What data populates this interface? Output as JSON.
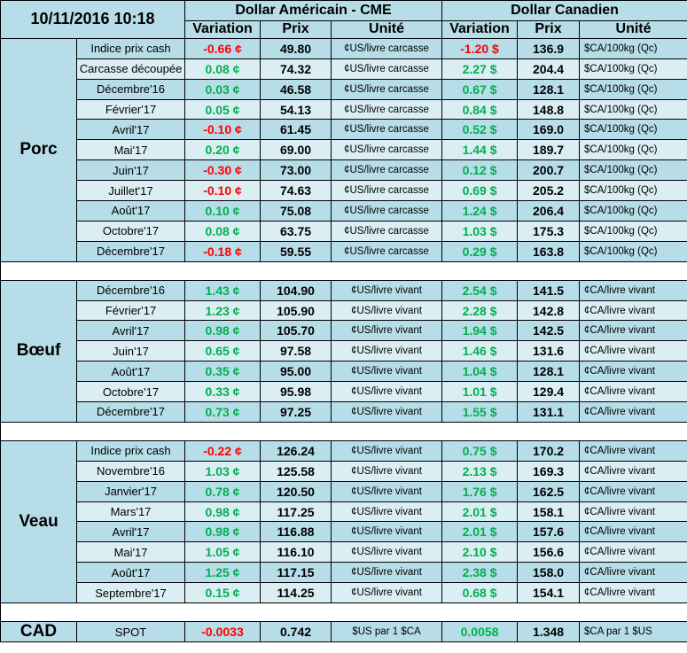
{
  "header": {
    "datetime": "10/11/2016 10:18",
    "usd_title": "Dollar Américain - CME",
    "cad_title": "Dollar Canadien",
    "col_variation": "Variation",
    "col_prix": "Prix",
    "col_unite": "Unité"
  },
  "groups": [
    {
      "name": "Porc",
      "rows": [
        {
          "label": "Indice prix cash",
          "usd_var": "-0.66 ¢",
          "usd_sign": "neg",
          "usd_prix": "49.80",
          "usd_unit": "¢US/livre carcasse",
          "cad_var": "-1.20 $",
          "cad_sign": "neg",
          "cad_prix": "136.9",
          "cad_unit": "$CA/100kg (Qc)"
        },
        {
          "label": "Carcasse découpée",
          "usd_var": "0.08 ¢",
          "usd_sign": "pos",
          "usd_prix": "74.32",
          "usd_unit": "¢US/livre carcasse",
          "cad_var": "2.27 $",
          "cad_sign": "pos",
          "cad_prix": "204.4",
          "cad_unit": "$CA/100kg (Qc)"
        },
        {
          "label": "Décembre'16",
          "usd_var": "0.03 ¢",
          "usd_sign": "pos",
          "usd_prix": "46.58",
          "usd_unit": "¢US/livre carcasse",
          "cad_var": "0.67 $",
          "cad_sign": "pos",
          "cad_prix": "128.1",
          "cad_unit": "$CA/100kg (Qc)"
        },
        {
          "label": "Février'17",
          "usd_var": "0.05 ¢",
          "usd_sign": "pos",
          "usd_prix": "54.13",
          "usd_unit": "¢US/livre carcasse",
          "cad_var": "0.84 $",
          "cad_sign": "pos",
          "cad_prix": "148.8",
          "cad_unit": "$CA/100kg (Qc)"
        },
        {
          "label": "Avril'17",
          "usd_var": "-0.10 ¢",
          "usd_sign": "neg",
          "usd_prix": "61.45",
          "usd_unit": "¢US/livre carcasse",
          "cad_var": "0.52 $",
          "cad_sign": "pos",
          "cad_prix": "169.0",
          "cad_unit": "$CA/100kg (Qc)"
        },
        {
          "label": "Mai'17",
          "usd_var": "0.20 ¢",
          "usd_sign": "pos",
          "usd_prix": "69.00",
          "usd_unit": "¢US/livre carcasse",
          "cad_var": "1.44 $",
          "cad_sign": "pos",
          "cad_prix": "189.7",
          "cad_unit": "$CA/100kg (Qc)"
        },
        {
          "label": "Juin'17",
          "usd_var": "-0.30 ¢",
          "usd_sign": "neg",
          "usd_prix": "73.00",
          "usd_unit": "¢US/livre carcasse",
          "cad_var": "0.12 $",
          "cad_sign": "pos",
          "cad_prix": "200.7",
          "cad_unit": "$CA/100kg (Qc)"
        },
        {
          "label": "Juillet'17",
          "usd_var": "-0.10 ¢",
          "usd_sign": "neg",
          "usd_prix": "74.63",
          "usd_unit": "¢US/livre carcasse",
          "cad_var": "0.69 $",
          "cad_sign": "pos",
          "cad_prix": "205.2",
          "cad_unit": "$CA/100kg (Qc)"
        },
        {
          "label": "Août'17",
          "usd_var": "0.10 ¢",
          "usd_sign": "pos",
          "usd_prix": "75.08",
          "usd_unit": "¢US/livre carcasse",
          "cad_var": "1.24 $",
          "cad_sign": "pos",
          "cad_prix": "206.4",
          "cad_unit": "$CA/100kg (Qc)"
        },
        {
          "label": "Octobre'17",
          "usd_var": "0.08 ¢",
          "usd_sign": "pos",
          "usd_prix": "63.75",
          "usd_unit": "¢US/livre carcasse",
          "cad_var": "1.03 $",
          "cad_sign": "pos",
          "cad_prix": "175.3",
          "cad_unit": "$CA/100kg (Qc)"
        },
        {
          "label": "Décembre'17",
          "usd_var": "-0.18 ¢",
          "usd_sign": "neg",
          "usd_prix": "59.55",
          "usd_unit": "¢US/livre carcasse",
          "cad_var": "0.29 $",
          "cad_sign": "pos",
          "cad_prix": "163.8",
          "cad_unit": "$CA/100kg (Qc)"
        }
      ]
    },
    {
      "name": "Bœuf",
      "rows": [
        {
          "label": "Décembre'16",
          "usd_var": "1.43 ¢",
          "usd_sign": "pos",
          "usd_prix": "104.90",
          "usd_unit": "¢US/livre vivant",
          "cad_var": "2.54 $",
          "cad_sign": "pos",
          "cad_prix": "141.5",
          "cad_unit": "¢CA/livre vivant"
        },
        {
          "label": "Février'17",
          "usd_var": "1.23 ¢",
          "usd_sign": "pos",
          "usd_prix": "105.90",
          "usd_unit": "¢US/livre vivant",
          "cad_var": "2.28 $",
          "cad_sign": "pos",
          "cad_prix": "142.8",
          "cad_unit": "¢CA/livre vivant"
        },
        {
          "label": "Avril'17",
          "usd_var": "0.98 ¢",
          "usd_sign": "pos",
          "usd_prix": "105.70",
          "usd_unit": "¢US/livre vivant",
          "cad_var": "1.94 $",
          "cad_sign": "pos",
          "cad_prix": "142.5",
          "cad_unit": "¢CA/livre vivant"
        },
        {
          "label": "Juin'17",
          "usd_var": "0.65 ¢",
          "usd_sign": "pos",
          "usd_prix": "97.58",
          "usd_unit": "¢US/livre vivant",
          "cad_var": "1.46 $",
          "cad_sign": "pos",
          "cad_prix": "131.6",
          "cad_unit": "¢CA/livre vivant"
        },
        {
          "label": "Août'17",
          "usd_var": "0.35 ¢",
          "usd_sign": "pos",
          "usd_prix": "95.00",
          "usd_unit": "¢US/livre vivant",
          "cad_var": "1.04 $",
          "cad_sign": "pos",
          "cad_prix": "128.1",
          "cad_unit": "¢CA/livre vivant"
        },
        {
          "label": "Octobre'17",
          "usd_var": "0.33 ¢",
          "usd_sign": "pos",
          "usd_prix": "95.98",
          "usd_unit": "¢US/livre vivant",
          "cad_var": "1.01 $",
          "cad_sign": "pos",
          "cad_prix": "129.4",
          "cad_unit": "¢CA/livre vivant"
        },
        {
          "label": "Décembre'17",
          "usd_var": "0.73 ¢",
          "usd_sign": "pos",
          "usd_prix": "97.25",
          "usd_unit": "¢US/livre vivant",
          "cad_var": "1.55 $",
          "cad_sign": "pos",
          "cad_prix": "131.1",
          "cad_unit": "¢CA/livre vivant"
        }
      ]
    },
    {
      "name": "Veau",
      "rows": [
        {
          "label": "Indice prix cash",
          "usd_var": "-0.22 ¢",
          "usd_sign": "neg",
          "usd_prix": "126.24",
          "usd_unit": "¢US/livre vivant",
          "cad_var": "0.75 $",
          "cad_sign": "pos",
          "cad_prix": "170.2",
          "cad_unit": "¢CA/livre vivant"
        },
        {
          "label": "Novembre'16",
          "usd_var": "1.03 ¢",
          "usd_sign": "pos",
          "usd_prix": "125.58",
          "usd_unit": "¢US/livre vivant",
          "cad_var": "2.13 $",
          "cad_sign": "pos",
          "cad_prix": "169.3",
          "cad_unit": "¢CA/livre vivant"
        },
        {
          "label": "Janvier'17",
          "usd_var": "0.78 ¢",
          "usd_sign": "pos",
          "usd_prix": "120.50",
          "usd_unit": "¢US/livre vivant",
          "cad_var": "1.76 $",
          "cad_sign": "pos",
          "cad_prix": "162.5",
          "cad_unit": "¢CA/livre vivant"
        },
        {
          "label": "Mars'17",
          "usd_var": "0.98 ¢",
          "usd_sign": "pos",
          "usd_prix": "117.25",
          "usd_unit": "¢US/livre vivant",
          "cad_var": "2.01 $",
          "cad_sign": "pos",
          "cad_prix": "158.1",
          "cad_unit": "¢CA/livre vivant"
        },
        {
          "label": "Avril'17",
          "usd_var": "0.98 ¢",
          "usd_sign": "pos",
          "usd_prix": "116.88",
          "usd_unit": "¢US/livre vivant",
          "cad_var": "2.01 $",
          "cad_sign": "pos",
          "cad_prix": "157.6",
          "cad_unit": "¢CA/livre vivant"
        },
        {
          "label": "Mai'17",
          "usd_var": "1.05 ¢",
          "usd_sign": "pos",
          "usd_prix": "116.10",
          "usd_unit": "¢US/livre vivant",
          "cad_var": "2.10 $",
          "cad_sign": "pos",
          "cad_prix": "156.6",
          "cad_unit": "¢CA/livre vivant"
        },
        {
          "label": "Août'17",
          "usd_var": "1.25 ¢",
          "usd_sign": "pos",
          "usd_prix": "117.15",
          "usd_unit": "¢US/livre vivant",
          "cad_var": "2.38 $",
          "cad_sign": "pos",
          "cad_prix": "158.0",
          "cad_unit": "¢CA/livre vivant"
        },
        {
          "label": "Septembre'17",
          "usd_var": "0.15 ¢",
          "usd_sign": "pos",
          "usd_prix": "114.25",
          "usd_unit": "¢US/livre vivant",
          "cad_var": "0.68 $",
          "cad_sign": "pos",
          "cad_prix": "154.1",
          "cad_unit": "¢CA/livre vivant"
        }
      ]
    }
  ],
  "cad_row": {
    "name": "CAD",
    "label": "SPOT",
    "usd_var": "-0.0033",
    "usd_sign": "neg",
    "usd_prix": "0.742",
    "usd_unit": "$US par 1 $CA",
    "cad_var": "0.0058",
    "cad_sign": "pos",
    "cad_prix": "1.348",
    "cad_unit": "$CA par 1 $US"
  },
  "colors": {
    "header_bg": "#b7dde8",
    "row_light": "#daeef3",
    "positive": "#00b050",
    "negative": "#ff0000"
  }
}
